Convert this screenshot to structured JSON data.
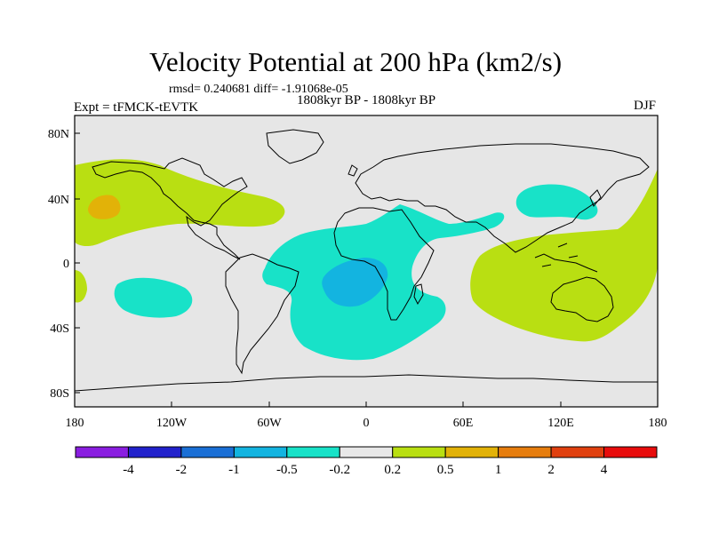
{
  "title": "Velocity Potential at 200 hPa (km2/s)",
  "stats": "rmsd= 0.240681 diff= -1.91068e-05",
  "experiment": "Expt = tFMCK-tEVTK",
  "period": "1808kyr BP - 1808kyr BP",
  "season": "DJF",
  "lat_ticks": [
    "80N",
    "40N",
    "0",
    "40S",
    "80S"
  ],
  "lon_ticks": [
    "180",
    "120W",
    "60W",
    "0",
    "60E",
    "120E",
    "180"
  ],
  "colorbar": {
    "colors": [
      "#8a1ee0",
      "#2222cc",
      "#1a6fd6",
      "#13b4e0",
      "#18e2c8",
      "#e8e8e8",
      "#b9df12",
      "#e2b208",
      "#e67d0e",
      "#e0400f",
      "#e80c0c"
    ],
    "labels": [
      "-4",
      "-2",
      "-1",
      "-0.5",
      "-0.2",
      "0.2",
      "0.5",
      "1",
      "2",
      "4"
    ]
  },
  "field_colors": {
    "background": "#e6e6e6",
    "pos_weak": "#b9df12",
    "pos_mid": "#e2b208",
    "neg_weak": "#18e2c8",
    "neg_mid": "#13b4e0"
  }
}
